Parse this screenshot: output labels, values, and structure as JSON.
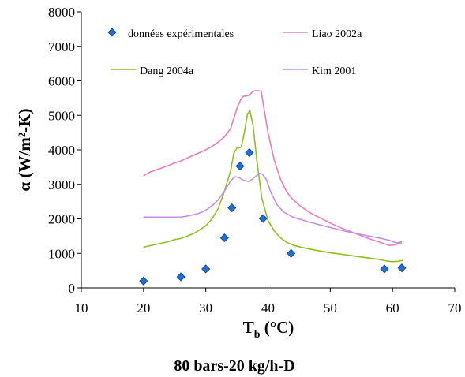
{
  "chart_data": {
    "type": "line",
    "caption": "80 bars-20 kg/h-D",
    "xlabel_main": "T",
    "xlabel_sub": "b",
    "xlabel_unit": " (°C)",
    "ylabel": "α (W/m²-K)",
    "xlim": [
      10,
      70
    ],
    "ylim": [
      0,
      8000
    ],
    "xticks": [
      {
        "value": 10,
        "label": "10"
      },
      {
        "value": 20,
        "label": "20"
      },
      {
        "value": 30,
        "label": "30"
      },
      {
        "value": 40,
        "label": "40"
      },
      {
        "value": 50,
        "label": "50"
      },
      {
        "value": 60,
        "label": "60"
      },
      {
        "value": 70,
        "label": "70"
      }
    ],
    "yticks": [
      {
        "value": 0,
        "label": "0"
      },
      {
        "value": 1000,
        "label": "1000"
      },
      {
        "value": 2000,
        "label": "2000"
      },
      {
        "value": 3000,
        "label": "3000"
      },
      {
        "value": 4000,
        "label": "4000"
      },
      {
        "value": 5000,
        "label": "5000"
      },
      {
        "value": 6000,
        "label": "6000"
      },
      {
        "value": 7000,
        "label": "7000"
      },
      {
        "value": 8000,
        "label": "8000"
      }
    ],
    "grid": false,
    "series": [
      {
        "name": "données expérimentales",
        "kind": "scatter",
        "color": "#1f6fd6",
        "points": [
          [
            20,
            200
          ],
          [
            26,
            320
          ],
          [
            30,
            550
          ],
          [
            33,
            1450
          ],
          [
            34.2,
            2320
          ],
          [
            35.5,
            3530
          ],
          [
            37,
            3920
          ],
          [
            39.2,
            2010
          ],
          [
            43.7,
            1000
          ],
          [
            58.7,
            550
          ],
          [
            61.5,
            580
          ]
        ]
      },
      {
        "name": "Liao 2002a",
        "kind": "line",
        "color": "#f07ab5",
        "points": [
          [
            20,
            3250
          ],
          [
            21,
            3350
          ],
          [
            22,
            3420
          ],
          [
            23,
            3480
          ],
          [
            24,
            3550
          ],
          [
            25,
            3620
          ],
          [
            26,
            3680
          ],
          [
            27,
            3760
          ],
          [
            28,
            3840
          ],
          [
            29,
            3920
          ],
          [
            30,
            4000
          ],
          [
            31,
            4100
          ],
          [
            32,
            4220
          ],
          [
            33,
            4380
          ],
          [
            34,
            4620
          ],
          [
            35,
            5200
          ],
          [
            35.6,
            5450
          ],
          [
            36,
            5550
          ],
          [
            37,
            5580
          ],
          [
            37.6,
            5700
          ],
          [
            38.2,
            5720
          ],
          [
            38.9,
            5700
          ],
          [
            39.3,
            5250
          ],
          [
            40,
            4500
          ],
          [
            41,
            3700
          ],
          [
            42,
            3150
          ],
          [
            43,
            2780
          ],
          [
            44,
            2560
          ],
          [
            45,
            2400
          ],
          [
            46,
            2270
          ],
          [
            47,
            2150
          ],
          [
            48,
            2060
          ],
          [
            49,
            1970
          ],
          [
            50,
            1880
          ],
          [
            52,
            1720
          ],
          [
            54,
            1580
          ],
          [
            56,
            1440
          ],
          [
            58,
            1320
          ],
          [
            59.5,
            1230
          ],
          [
            60.5,
            1250
          ],
          [
            61.5,
            1350
          ]
        ]
      },
      {
        "name": "Dang 2004a",
        "kind": "line",
        "color": "#8cc21e",
        "points": [
          [
            20,
            1180
          ],
          [
            21,
            1220
          ],
          [
            22,
            1260
          ],
          [
            23,
            1300
          ],
          [
            24,
            1340
          ],
          [
            25,
            1400
          ],
          [
            26,
            1430
          ],
          [
            27,
            1500
          ],
          [
            28,
            1570
          ],
          [
            29,
            1680
          ],
          [
            30,
            1800
          ],
          [
            31,
            2000
          ],
          [
            32,
            2300
          ],
          [
            33,
            2800
          ],
          [
            34,
            3400
          ],
          [
            34.5,
            3900
          ],
          [
            35,
            4050
          ],
          [
            35.7,
            4080
          ],
          [
            36.2,
            4500
          ],
          [
            36.7,
            5050
          ],
          [
            37.1,
            5130
          ],
          [
            37.6,
            4700
          ],
          [
            38.2,
            3700
          ],
          [
            39,
            2600
          ],
          [
            40,
            1950
          ],
          [
            41,
            1650
          ],
          [
            42,
            1450
          ],
          [
            43,
            1320
          ],
          [
            44,
            1240
          ],
          [
            46,
            1150
          ],
          [
            48,
            1080
          ],
          [
            50,
            1020
          ],
          [
            52,
            970
          ],
          [
            54,
            920
          ],
          [
            56,
            870
          ],
          [
            58,
            820
          ],
          [
            59,
            780
          ],
          [
            60,
            760
          ],
          [
            61,
            770
          ],
          [
            61.7,
            800
          ]
        ]
      },
      {
        "name": "Kim 2001",
        "kind": "line",
        "color": "#c48ee8",
        "points": [
          [
            20,
            2050
          ],
          [
            22,
            2050
          ],
          [
            24,
            2050
          ],
          [
            26,
            2050
          ],
          [
            27,
            2080
          ],
          [
            28,
            2120
          ],
          [
            29,
            2170
          ],
          [
            30,
            2250
          ],
          [
            31,
            2380
          ],
          [
            32,
            2550
          ],
          [
            33,
            2800
          ],
          [
            34,
            3100
          ],
          [
            34.7,
            3220
          ],
          [
            35.3,
            3200
          ],
          [
            36,
            3120
          ],
          [
            37,
            3080
          ],
          [
            37.8,
            3200
          ],
          [
            38.6,
            3320
          ],
          [
            39.1,
            3300
          ],
          [
            39.8,
            3120
          ],
          [
            40.5,
            2750
          ],
          [
            41.5,
            2400
          ],
          [
            42.5,
            2200
          ],
          [
            44,
            2050
          ],
          [
            46,
            1940
          ],
          [
            48,
            1840
          ],
          [
            50,
            1750
          ],
          [
            52,
            1660
          ],
          [
            54,
            1580
          ],
          [
            56,
            1510
          ],
          [
            58,
            1440
          ],
          [
            59.5,
            1380
          ],
          [
            60.5,
            1310
          ],
          [
            61.5,
            1300
          ]
        ]
      }
    ]
  }
}
